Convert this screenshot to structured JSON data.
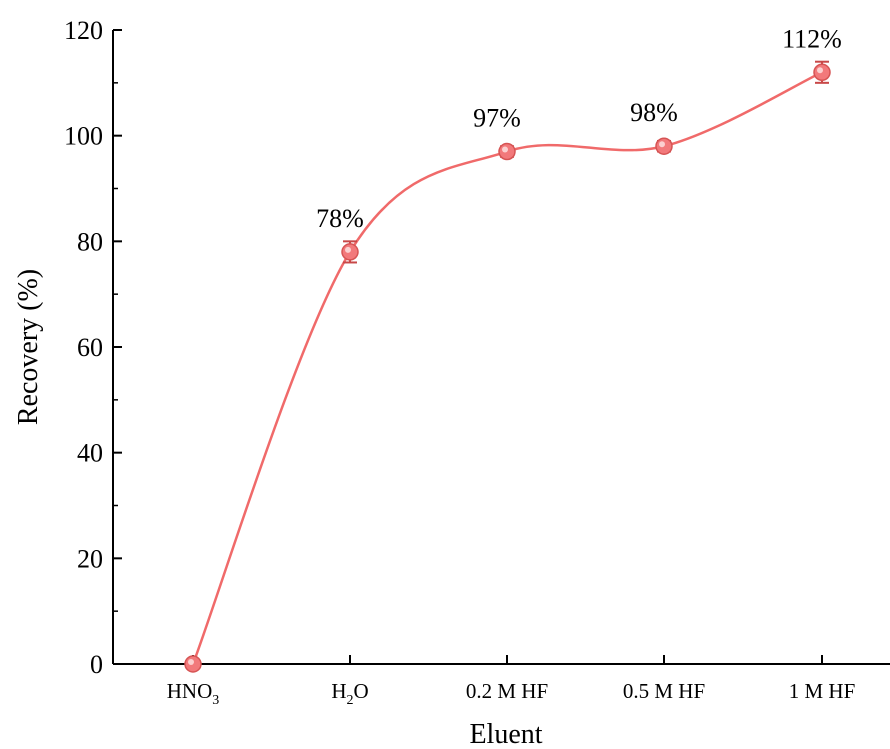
{
  "chart_data": {
    "type": "line",
    "title": "",
    "xlabel": "Eluent",
    "ylabel": "Recovery (%)",
    "ylim": [
      0,
      120
    ],
    "yticks": [
      0,
      20,
      40,
      60,
      80,
      100,
      120
    ],
    "grid": false,
    "legend": "none",
    "categories": [
      "HNO3",
      "H2O",
      "0.2 M HF",
      "0.5 M HF",
      "1 M HF"
    ],
    "category_labels": [
      {
        "base": "HNO",
        "sub": "3",
        "tail": ""
      },
      {
        "base": "H",
        "sub": "2",
        "tail": "O"
      },
      {
        "base": "0.2 M HF",
        "sub": "",
        "tail": ""
      },
      {
        "base": "0.5 M HF",
        "sub": "",
        "tail": ""
      },
      {
        "base": "1 M HF",
        "sub": "",
        "tail": ""
      }
    ],
    "series": [
      {
        "values": [
          0,
          78,
          97,
          98,
          112
        ],
        "errors": [
          0,
          2,
          1,
          1,
          2
        ],
        "data_labels": [
          "",
          "78%",
          "97%",
          "98%",
          "112%"
        ],
        "color": "#f06a6a",
        "marker_color": "#f2797b",
        "curve": "spline"
      }
    ]
  }
}
